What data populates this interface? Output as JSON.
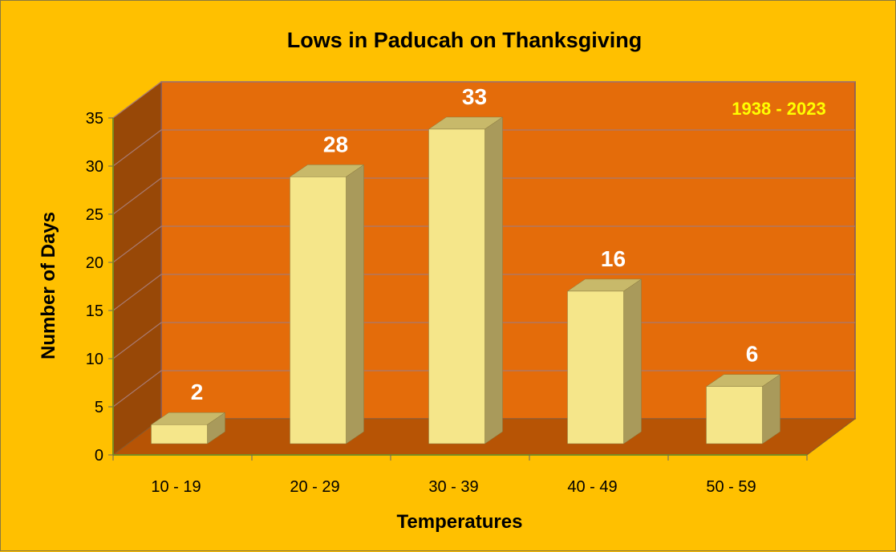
{
  "chart_data": {
    "type": "bar",
    "title": "Lows in Paducah on Thanksgiving",
    "annotation": "1938 - 2023",
    "xlabel": "Temperatures",
    "ylabel": "Number of Days",
    "categories": [
      "10 - 19",
      "20 - 29",
      "30 - 39",
      "40 - 49",
      "50 - 59"
    ],
    "values": [
      2,
      28,
      33,
      16,
      6
    ],
    "ylim": [
      0,
      35
    ],
    "yticks": [
      "0",
      "5",
      "10",
      "15",
      "20",
      "25",
      "30",
      "35"
    ],
    "grid": true,
    "legend": "none",
    "colors": {
      "background": "#FFC000",
      "back_wall": "#E46C0A",
      "side_wall": "#984807",
      "floor": "#B75405",
      "bar_front": "#F5E68A",
      "bar_top": "#C8B96A",
      "bar_side": "#A99A5B",
      "annotation": "#FFFF00",
      "value_label": "#FFFFFF"
    }
  }
}
